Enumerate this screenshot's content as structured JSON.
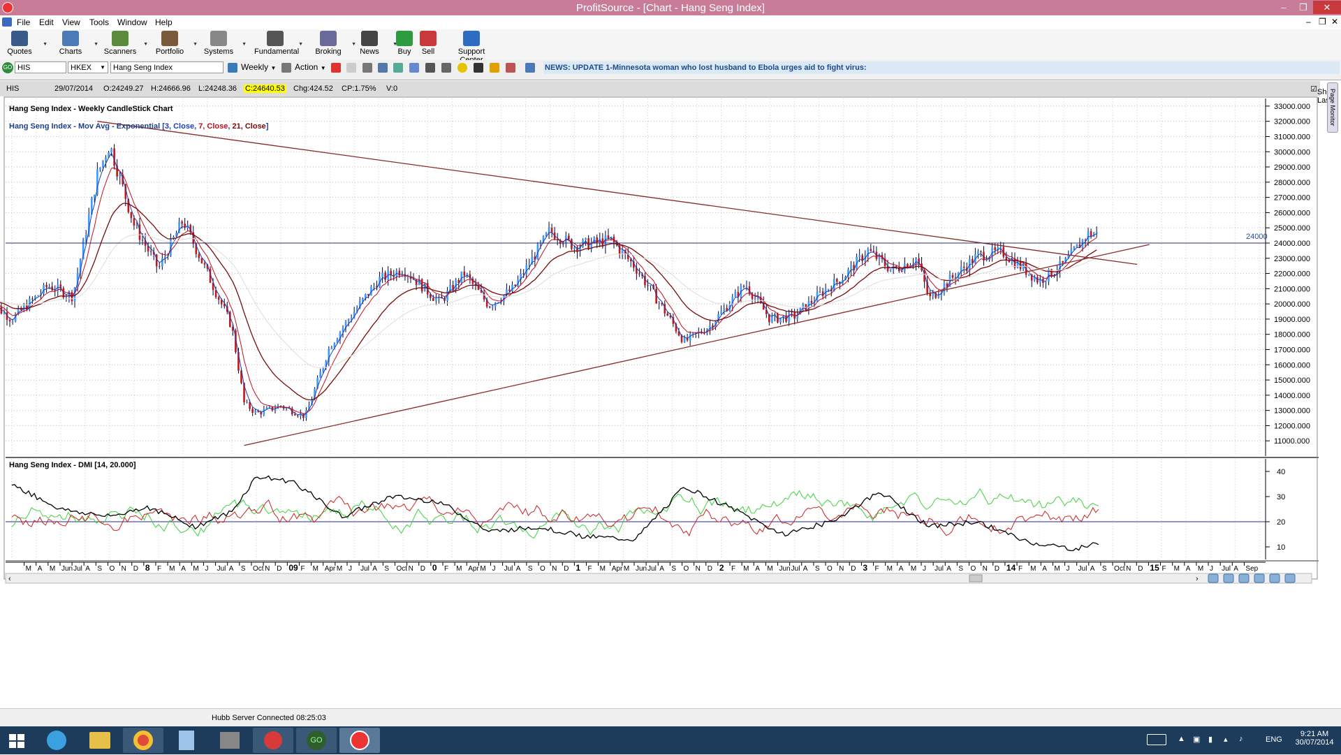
{
  "window": {
    "title": "ProfitSource - [Chart - Hang Seng Index]"
  },
  "menu": [
    "File",
    "Edit",
    "View",
    "Tools",
    "Window",
    "Help"
  ],
  "toolbar": [
    {
      "label": "Quotes",
      "icon": "quotes-icon",
      "color": "#3a5a8c",
      "x": 28,
      "dd": true
    },
    {
      "label": "Charts",
      "icon": "charts-icon",
      "color": "#4a7ab8",
      "x": 101,
      "dd": true
    },
    {
      "label": "Scanners",
      "icon": "scanners-icon",
      "color": "#5a8a3a",
      "x": 172,
      "dd": true
    },
    {
      "label": "Portfolio",
      "icon": "portfolio-icon",
      "color": "#7a5a3a",
      "x": 243,
      "dd": true
    },
    {
      "label": "Systems",
      "icon": "systems-icon",
      "color": "#888888",
      "x": 313,
      "dd": true
    },
    {
      "label": "Fundamental",
      "icon": "fundamental-icon",
      "color": "#555555",
      "x": 394,
      "dd": true
    },
    {
      "label": "Broking",
      "icon": "broking-icon",
      "color": "#6a6a9a",
      "x": 470,
      "dd": true
    },
    {
      "label": "News",
      "icon": "news-icon",
      "color": "#444444",
      "x": 529,
      "dd": true
    },
    {
      "label": "Buy",
      "icon": "buy-icon",
      "color": "#2e9b3e",
      "x": 579,
      "dd": false
    },
    {
      "label": "Sell",
      "icon": "sell-icon",
      "color": "#c9383a",
      "x": 613,
      "dd": false
    },
    {
      "label": "Support Center",
      "icon": "help-icon",
      "color": "#2d6cc0",
      "x": 675,
      "dd": false
    }
  ],
  "symbol": {
    "code": "HIS",
    "exchange": "HKEX",
    "name": "Hang Seng Index",
    "period": "Weekly",
    "action": "Action"
  },
  "news": "NEWS: UPDATE 1-Minnesota woman who lost husband to Ebola urges aid to fight virus:",
  "info": {
    "symbol": "HIS",
    "date": "29/07/2014",
    "open": "O:24249.27",
    "high": "H:24666.96",
    "low": "L:24248.36",
    "close": "C:24640.53",
    "change": "Chg:424.52",
    "cp": "CP:1.75%",
    "vol": "V:0",
    "show_last": "Show Last",
    "page_monitor": "Page Monitor"
  },
  "chart_data": {
    "type": "candlestick",
    "title": "Hang Seng Index - Weekly CandleStick Chart",
    "overlay_label": {
      "prefix": "Hang Seng Index - Mov Avg - Exponential [",
      "p1": "3, Close",
      "sep1": ", ",
      "p2": "7, Close",
      "sep2": ", ",
      "p3": "21, Close",
      "suffix": "]"
    },
    "overlay_colors": {
      "p1": "#1f3fb0",
      "p2": "#c01020",
      "p3": "#7a0a0a"
    },
    "ylim": [
      10000,
      33500
    ],
    "yticks": [
      11000,
      12000,
      13000,
      14000,
      15000,
      16000,
      17000,
      18000,
      19000,
      20000,
      21000,
      22000,
      23000,
      24000,
      25000,
      26000,
      27000,
      28000,
      29000,
      30000,
      31000,
      32000,
      33000
    ],
    "ytick_labels": [
      "11000.000",
      "12000.000",
      "13000.000",
      "14000.000",
      "15000.000",
      "16000.000",
      "17000.000",
      "18000.000",
      "19000.000",
      "20000.000",
      "21000.000",
      "22000.000",
      "23000.000",
      "24000.000",
      "25000.000",
      "26000.000",
      "27000.000",
      "28000.000",
      "29000.000",
      "30000.000",
      "31000.000",
      "32000.000",
      "33000.000"
    ],
    "hline": {
      "value": 24000,
      "label": "24000"
    },
    "trendlines": [
      {
        "from": [
          "2007-10",
          32000
        ],
        "to": [
          "2014-11",
          22600
        ]
      },
      {
        "from": [
          "2008-10",
          10700
        ],
        "to": [
          "2014-12",
          23900
        ]
      }
    ],
    "price_path": [
      [
        "2007-01",
        20300
      ],
      [
        "2007-03",
        19000
      ],
      [
        "2007-06",
        21200
      ],
      [
        "2007-08",
        20500
      ],
      [
        "2007-10",
        28500
      ],
      [
        "2007-11",
        30500
      ],
      [
        "2008-01",
        25200
      ],
      [
        "2008-03",
        22300
      ],
      [
        "2008-05",
        25500
      ],
      [
        "2008-07",
        22000
      ],
      [
        "2008-09",
        18500
      ],
      [
        "2008-10",
        13500
      ],
      [
        "2008-11",
        12800
      ],
      [
        "2009-01",
        13300
      ],
      [
        "2009-03",
        12600
      ],
      [
        "2009-05",
        17200
      ],
      [
        "2009-07",
        19500
      ],
      [
        "2009-09",
        21600
      ],
      [
        "2009-11",
        22300
      ],
      [
        "2010-02",
        20100
      ],
      [
        "2010-04",
        22000
      ],
      [
        "2010-06",
        19900
      ],
      [
        "2010-08",
        21000
      ],
      [
        "2010-11",
        24800
      ],
      [
        "2011-01",
        23800
      ],
      [
        "2011-04",
        24200
      ],
      [
        "2011-06",
        22400
      ],
      [
        "2011-08",
        20000
      ],
      [
        "2011-10",
        17500
      ],
      [
        "2011-12",
        18500
      ],
      [
        "2012-03",
        21300
      ],
      [
        "2012-05",
        19000
      ],
      [
        "2012-07",
        19200
      ],
      [
        "2012-09",
        20600
      ],
      [
        "2012-11",
        21800
      ],
      [
        "2013-01",
        23500
      ],
      [
        "2013-03",
        22200
      ],
      [
        "2013-05",
        23000
      ],
      [
        "2013-06",
        20300
      ],
      [
        "2013-08",
        21800
      ],
      [
        "2013-10",
        23200
      ],
      [
        "2013-12",
        23400
      ],
      [
        "2014-03",
        21500
      ],
      [
        "2014-05",
        22600
      ],
      [
        "2014-07",
        24600
      ]
    ],
    "time_labels": [
      "M",
      "A",
      "M",
      "Jun",
      "Jul",
      "A",
      "S",
      "O",
      "N",
      "D",
      "8",
      "F",
      "M",
      "A",
      "M",
      "J",
      "Jul",
      "A",
      "S",
      "Oct",
      "N",
      "D",
      "09",
      "F",
      "M",
      "Apr",
      "M",
      "J",
      "Jul",
      "A",
      "S",
      "Oct",
      "N",
      "D",
      "0",
      "F",
      "M",
      "Apr",
      "M",
      "J",
      "Jul",
      "A",
      "S",
      "O",
      "N",
      "D",
      "1",
      "F",
      "M",
      "Apr",
      "M",
      "Jun",
      "Jul",
      "A",
      "S",
      "O",
      "N",
      "D",
      "2",
      "F",
      "M",
      "A",
      "M",
      "Jun",
      "Jul",
      "A",
      "S",
      "O",
      "N",
      "D",
      "3",
      "F",
      "M",
      "A",
      "M",
      "J",
      "Jul",
      "A",
      "S",
      "O",
      "N",
      "D",
      "14",
      "F",
      "M",
      "A",
      "M",
      "J",
      "Jul",
      "A",
      "S",
      "Oct",
      "N",
      "D",
      "15",
      "F",
      "M",
      "A",
      "M",
      "J",
      "Jul",
      "A",
      "Sep"
    ],
    "bold_labels": [
      "8",
      "09",
      "0",
      "1",
      "2",
      "3",
      "14",
      "15"
    ],
    "x_start": "2007-03",
    "x_end": "2015-09",
    "dmi": {
      "label": "Hang Seng Index - DMI [14, 20.000]",
      "ylim": [
        5,
        45
      ],
      "yticks": [
        10,
        20,
        30,
        40
      ],
      "threshold": 20,
      "colors": {
        "plus_di": "#3fd23f",
        "minus_di": "#cc2222",
        "adx": "#000000"
      },
      "adx_points": [
        [
          "2007-03",
          35
        ],
        [
          "2007-07",
          25
        ],
        [
          "2007-11",
          22
        ],
        [
          "2008-02",
          26
        ],
        [
          "2008-06",
          18
        ],
        [
          "2008-09",
          24
        ],
        [
          "2008-11",
          38
        ],
        [
          "2009-02",
          36
        ],
        [
          "2009-06",
          22
        ],
        [
          "2009-10",
          30
        ],
        [
          "2010-02",
          28
        ],
        [
          "2010-06",
          16
        ],
        [
          "2010-10",
          18
        ],
        [
          "2011-02",
          14
        ],
        [
          "2011-06",
          13
        ],
        [
          "2011-10",
          34
        ],
        [
          "2012-02",
          25
        ],
        [
          "2012-06",
          15
        ],
        [
          "2012-10",
          20
        ],
        [
          "2013-02",
          32
        ],
        [
          "2013-06",
          18
        ],
        [
          "2013-10",
          20
        ],
        [
          "2014-02",
          12
        ],
        [
          "2014-06",
          9
        ],
        [
          "2014-08",
          12
        ]
      ]
    }
  },
  "status": "Hubb Server Connected 08:25:03",
  "taskbar": {
    "lang": "ENG",
    "time": "9:21 AM",
    "date": "30/07/2014"
  }
}
